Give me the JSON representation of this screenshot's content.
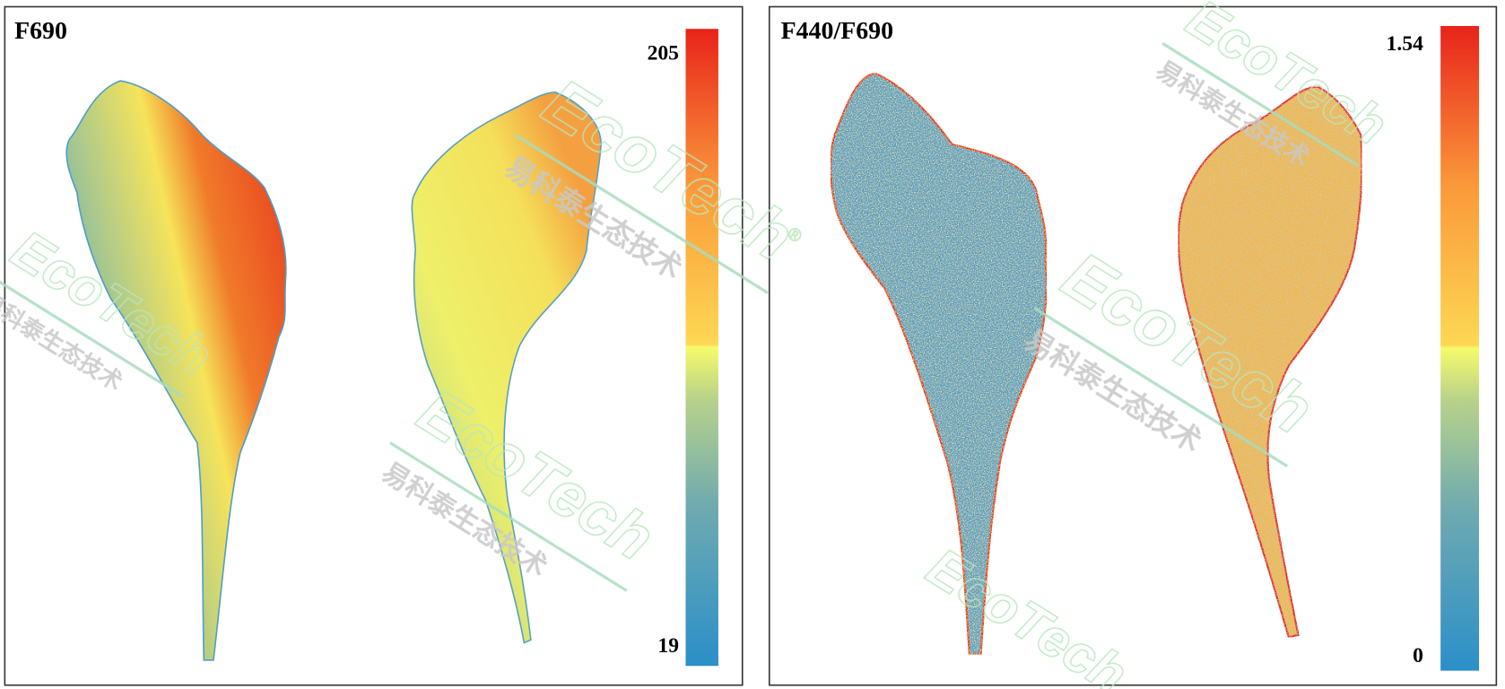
{
  "panels": [
    {
      "title": "F690",
      "colorbar": {
        "max_label": "205",
        "min_label": "19"
      }
    },
    {
      "title": "F440/F690",
      "colorbar": {
        "max_label": "1.54",
        "min_label": "0"
      }
    }
  ],
  "colormap": {
    "low": "#2b8fc9",
    "mid_low": "#a9c98c",
    "mid": "#ffff66",
    "mid_high": "#fdb040",
    "high": "#e8231b"
  },
  "watermark": {
    "brand": "EcoTech",
    "registered": "®",
    "chinese": "易科泰生态技术"
  }
}
